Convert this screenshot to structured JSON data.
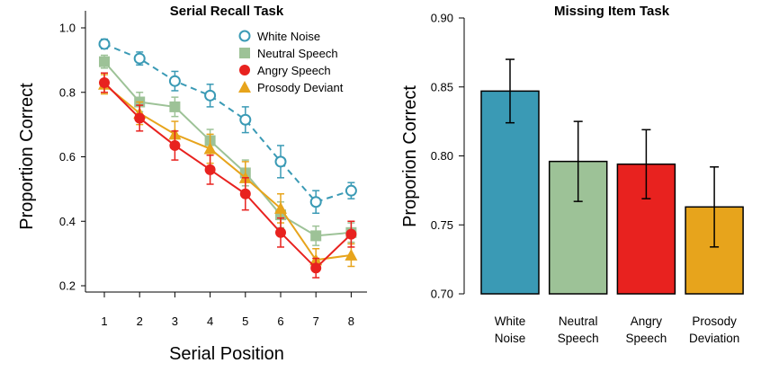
{
  "colors": {
    "white_noise": "#3a9ab5",
    "neutral_speech": "#9dc297",
    "angry_speech": "#e8221f",
    "prosody": "#e7a41c",
    "axis": "#000000"
  },
  "chart_data": [
    {
      "type": "line",
      "title": "Serial Recall Task",
      "xlabel": "Serial Position",
      "ylabel": "Proportion Correct",
      "x": [
        1,
        2,
        3,
        4,
        5,
        6,
        7,
        8
      ],
      "xticks": [
        "1",
        "2",
        "3",
        "4",
        "5",
        "6",
        "7",
        "8"
      ],
      "ylim": [
        0.18,
        1.02
      ],
      "yticks": [
        "0.2",
        "0.4",
        "0.6",
        "0.8",
        "1.0"
      ],
      "legend_position": "top-right",
      "series": [
        {
          "name": "White Noise",
          "key": "white_noise",
          "marker": "open-circle",
          "dashed": true,
          "values": [
            0.95,
            0.905,
            0.835,
            0.79,
            0.715,
            0.585,
            0.46,
            0.495
          ],
          "errors": [
            0.015,
            0.02,
            0.03,
            0.035,
            0.04,
            0.05,
            0.035,
            0.025
          ]
        },
        {
          "name": "Neutral Speech",
          "key": "neutral_speech",
          "marker": "square",
          "dashed": false,
          "values": [
            0.895,
            0.77,
            0.755,
            0.65,
            0.55,
            0.42,
            0.355,
            0.365
          ],
          "errors": [
            0.02,
            0.03,
            0.03,
            0.035,
            0.04,
            0.04,
            0.03,
            0.03
          ]
        },
        {
          "name": "Angry Speech",
          "key": "angry_speech",
          "marker": "filled-circle",
          "dashed": false,
          "values": [
            0.83,
            0.72,
            0.635,
            0.56,
            0.485,
            0.365,
            0.255,
            0.36
          ],
          "errors": [
            0.03,
            0.04,
            0.045,
            0.045,
            0.05,
            0.045,
            0.03,
            0.04
          ]
        },
        {
          "name": "Prosody Deviant",
          "key": "prosody",
          "marker": "triangle",
          "dashed": false,
          "values": [
            0.825,
            0.735,
            0.67,
            0.625,
            0.535,
            0.44,
            0.28,
            0.295
          ],
          "errors": [
            0.03,
            0.035,
            0.04,
            0.045,
            0.05,
            0.045,
            0.035,
            0.035
          ]
        }
      ]
    },
    {
      "type": "bar",
      "title": "Missing Item Task",
      "ylabel": "Proporion Correct",
      "categories": [
        [
          "White",
          "Noise"
        ],
        [
          "Neutral",
          "Speech"
        ],
        [
          "Angry",
          "Speech"
        ],
        [
          "Prosody",
          "Deviation"
        ]
      ],
      "keys": [
        "white_noise",
        "neutral_speech",
        "angry_speech",
        "prosody"
      ],
      "values": [
        0.847,
        0.796,
        0.794,
        0.763
      ],
      "errors": [
        0.023,
        0.029,
        0.025,
        0.029
      ],
      "ylim": [
        0.7,
        0.9
      ],
      "yticks": [
        "0.70",
        "0.75",
        "0.80",
        "0.85",
        "0.90"
      ]
    }
  ]
}
